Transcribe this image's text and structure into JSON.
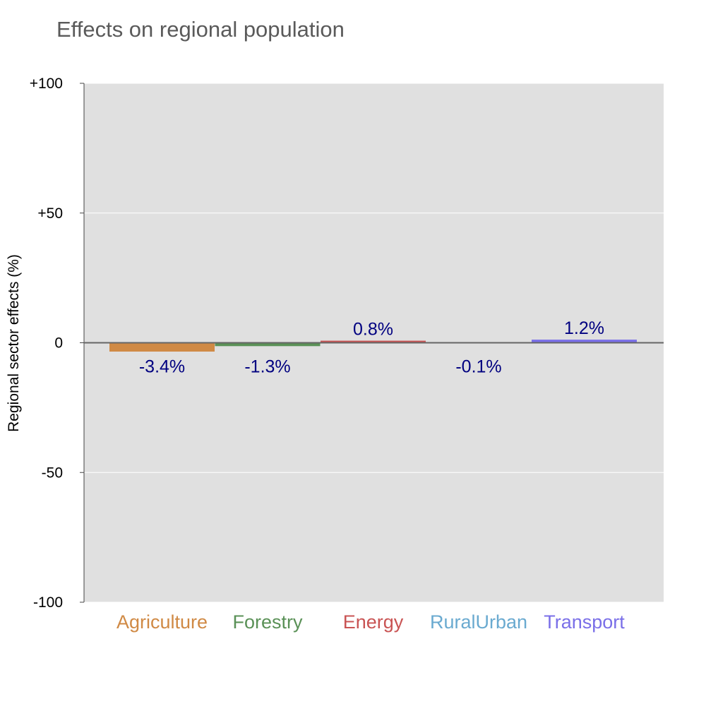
{
  "chart_data": {
    "type": "bar",
    "title": "Effects on regional population",
    "xlabel": "",
    "ylabel": "Regional sector effects (%)",
    "ylim": [
      -100,
      100
    ],
    "yticks": [
      100,
      50,
      0,
      -50,
      -100
    ],
    "ytick_labels": [
      "+100",
      "+50",
      "0",
      "-50",
      "-100"
    ],
    "grid": true,
    "categories": [
      "Agriculture",
      "Forestry",
      "Energy",
      "RuralUrban",
      "Transport"
    ],
    "values": [
      -3.4,
      -1.3,
      0.8,
      -0.1,
      1.2
    ],
    "data_labels": [
      "-3.4%",
      "-1.3%",
      "0.8%",
      "-0.1%",
      "1.2%"
    ],
    "colors": [
      "#d08a45",
      "#5a9157",
      "#c95454",
      "#6aaad0",
      "#7a6fe8"
    ],
    "label_color": "#000080",
    "plot_bg": "#e0e0e0"
  }
}
